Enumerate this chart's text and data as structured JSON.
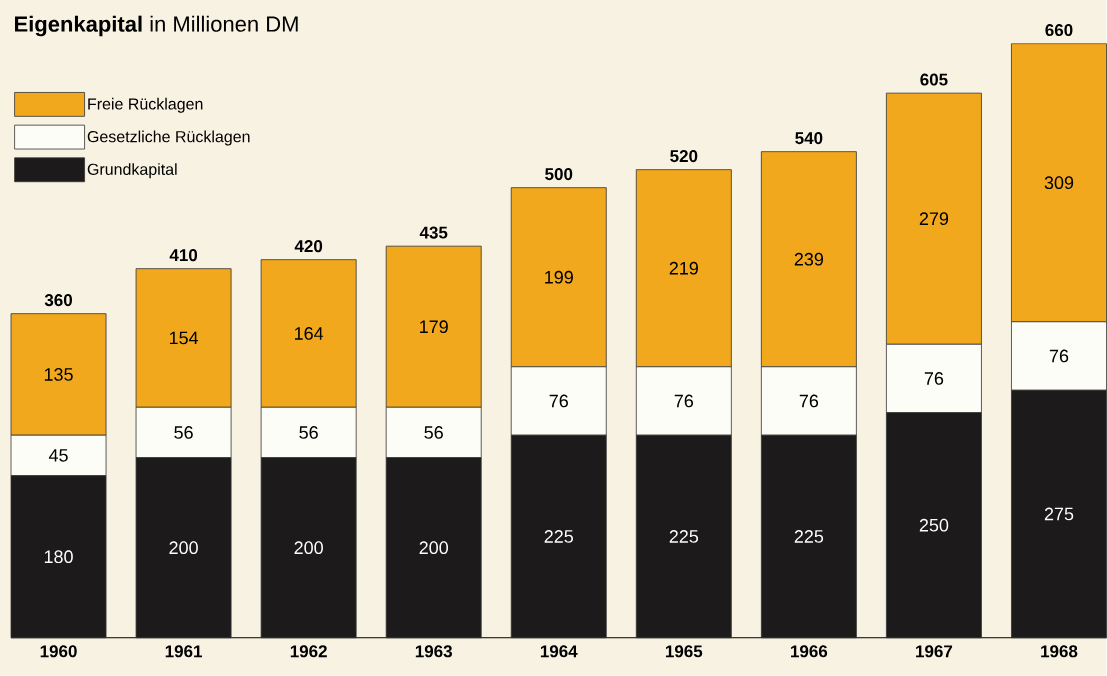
{
  "chart_data": {
    "type": "bar",
    "title": "**Eigenkapital** in Millionen DM",
    "stacked": true,
    "data_labels": true,
    "legend": "top left",
    "categories": [
      "1960",
      "1961",
      "1962",
      "1963",
      "1964",
      "1965",
      "1966",
      "1967",
      "1968"
    ],
    "series": [
      {
        "name": "Grundkapital",
        "color": "#1c1a1a",
        "values": [
          180,
          200,
          200,
          200,
          225,
          225,
          225,
          250,
          275
        ]
      },
      {
        "name": "Gesetzliche Rücklagen",
        "color": "#fdfdf8",
        "values": [
          45,
          56,
          56,
          56,
          76,
          76,
          76,
          76,
          76
        ]
      },
      {
        "name": "Freie Rücklagen",
        "color": "#f2a81d",
        "values": [
          135,
          154,
          164,
          179,
          199,
          219,
          239,
          279,
          309
        ]
      }
    ],
    "totals": [
      "360",
      "410",
      "420",
      "435",
      "500",
      "520",
      "540",
      "605",
      "660"
    ]
  }
}
